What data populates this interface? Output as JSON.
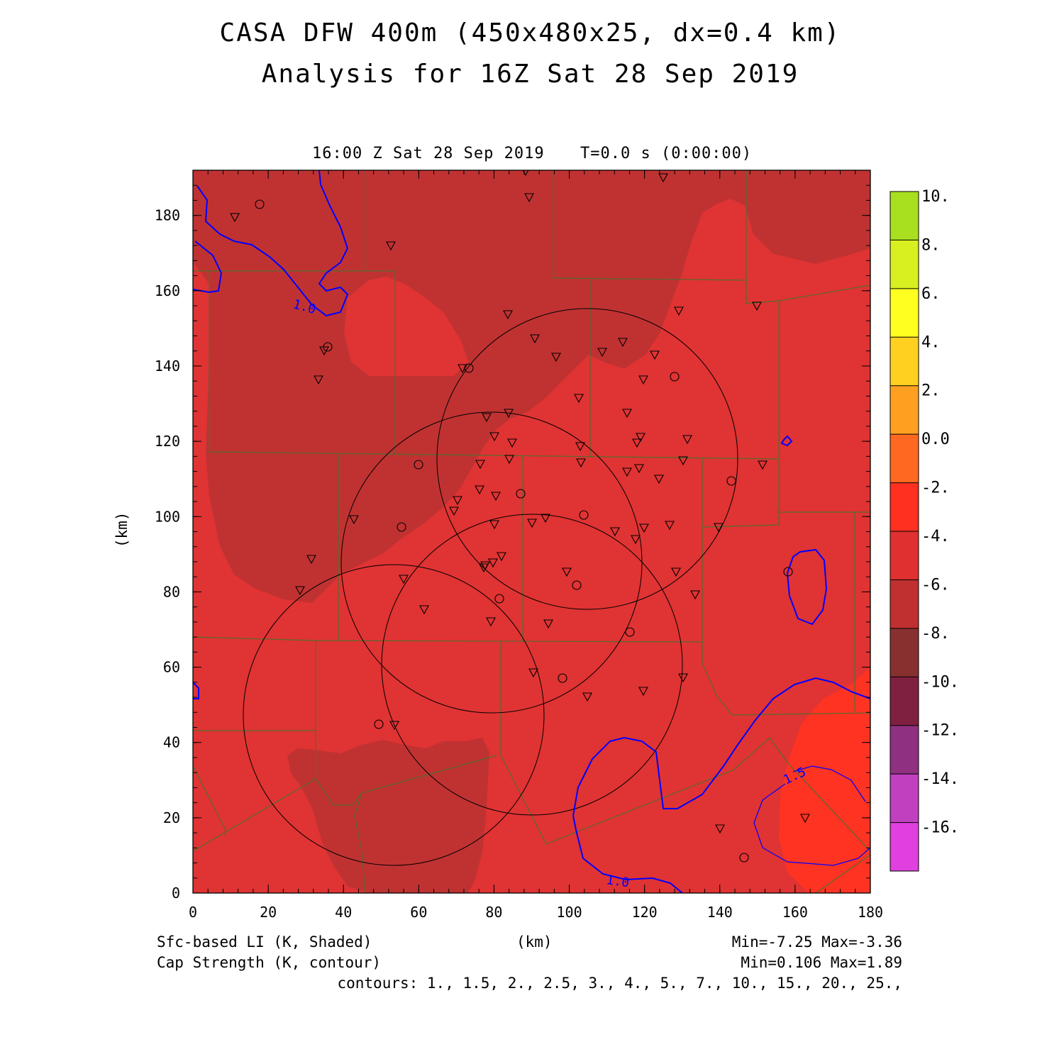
{
  "header": {
    "title_line1": "CASA DFW 400m (450x480x25, dx=0.4 km)",
    "title_line2": "Analysis for 16Z Sat 28 Sep 2019"
  },
  "plot": {
    "valid_time": "16:00 Z Sat 28 Sep 2019",
    "model_time": "T=0.0 s (0:00:00)",
    "x_axis_label": "(km)",
    "y_axis_label": "(km)",
    "x_ticks": [
      "0",
      "20",
      "40",
      "60",
      "80",
      "100",
      "120",
      "140",
      "160",
      "180"
    ],
    "y_ticks": [
      "0",
      "20",
      "40",
      "60",
      "80",
      "100",
      "120",
      "140",
      "160",
      "180"
    ],
    "xlim": [
      0,
      180
    ],
    "ylim": [
      0,
      192
    ],
    "contour_labels": [
      "1.0",
      "1.0",
      "1.5"
    ]
  },
  "colorbar": {
    "labels": [
      "10.",
      "8.",
      "6.",
      "4.",
      "2.",
      "0.0",
      "-2.",
      "-4.",
      "-6.",
      "-8.",
      "-10.",
      "-12.",
      "-14.",
      "-16."
    ],
    "colors": [
      "#a8e020",
      "#d8f020",
      "#ffff20",
      "#ffd020",
      "#ffa020",
      "#ff6820",
      "#ff3020",
      "#e03030",
      "#c03030",
      "#883030",
      "#802040",
      "#903080",
      "#c040c0",
      "#e040e0"
    ]
  },
  "footer": {
    "shaded_field": "Sfc-based LI (K, Shaded)",
    "contour_field": "Cap Strength (K, contour)",
    "x_unit": "(km)",
    "shaded_range": "Min=-7.25 Max=-3.36",
    "contour_range": "Min=0.106 Max=1.89",
    "contours": "contours: 1., 1.5, 2., 2.5, 3., 4., 5., 7., 10., 15., 20., 25.,"
  },
  "legend_colors": {
    "li_minus6_to_minus4": "#e03333",
    "li_minus8_to_minus6": "#c03232",
    "li_minus4_to_minus2": "#ff3322",
    "contour": "#0000ff",
    "county_lines": "#556b2f"
  }
}
